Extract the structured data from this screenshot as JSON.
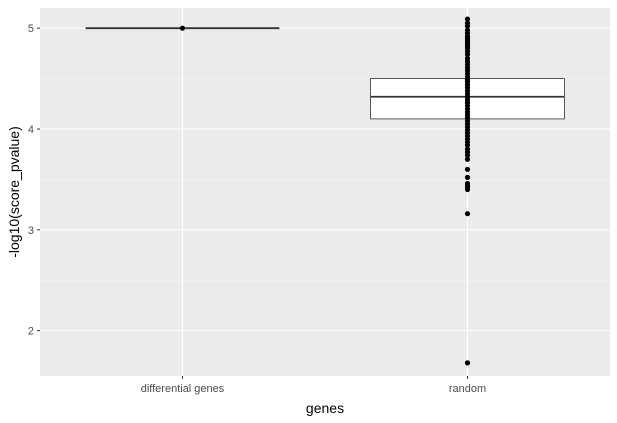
{
  "chart_data": {
    "type": "boxplot",
    "title": "",
    "xlabel": "genes",
    "ylabel": "-log10(score_pvalue)",
    "categories": [
      "differential genes",
      "random"
    ],
    "ylim": [
      1.55,
      5.2
    ],
    "yticks": [
      2,
      3,
      4,
      5
    ],
    "grid": true,
    "legend": "none",
    "boxes": [
      {
        "category": "differential genes",
        "q1": 5.0,
        "median": 5.0,
        "q3": 5.0,
        "whisker_low": 5.0,
        "whisker_high": 5.0
      },
      {
        "category": "random",
        "q1": 4.1,
        "median": 4.32,
        "q3": 4.5,
        "whisker_low": 4.1,
        "whisker_high": 4.5
      }
    ],
    "points": [
      {
        "category": "differential genes",
        "values": [
          5.0
        ]
      },
      {
        "category": "random",
        "values": [
          5.09,
          5.05,
          5.02,
          4.98,
          4.95,
          4.92,
          4.9,
          4.88,
          4.86,
          4.84,
          4.82,
          4.8,
          4.77,
          4.74,
          4.7,
          4.67,
          4.64,
          4.61,
          4.58,
          4.55,
          4.52,
          4.49,
          4.47,
          4.44,
          4.41,
          4.38,
          4.35,
          4.32,
          4.29,
          4.26,
          4.23,
          4.2,
          4.17,
          4.14,
          4.11,
          4.08,
          4.05,
          4.02,
          3.99,
          3.96,
          3.93,
          3.9,
          3.87,
          3.84,
          3.8,
          3.77,
          3.74,
          3.7,
          3.6,
          3.52,
          3.46,
          3.44,
          3.42,
          3.4,
          3.16,
          1.68
        ]
      }
    ],
    "colors": {
      "panel": "#ebebeb",
      "grid_major": "#ffffff",
      "grid_minor": "#f5f5f5",
      "box_fill": "#ffffff",
      "box_stroke": "#333333",
      "point": "#000000"
    }
  }
}
